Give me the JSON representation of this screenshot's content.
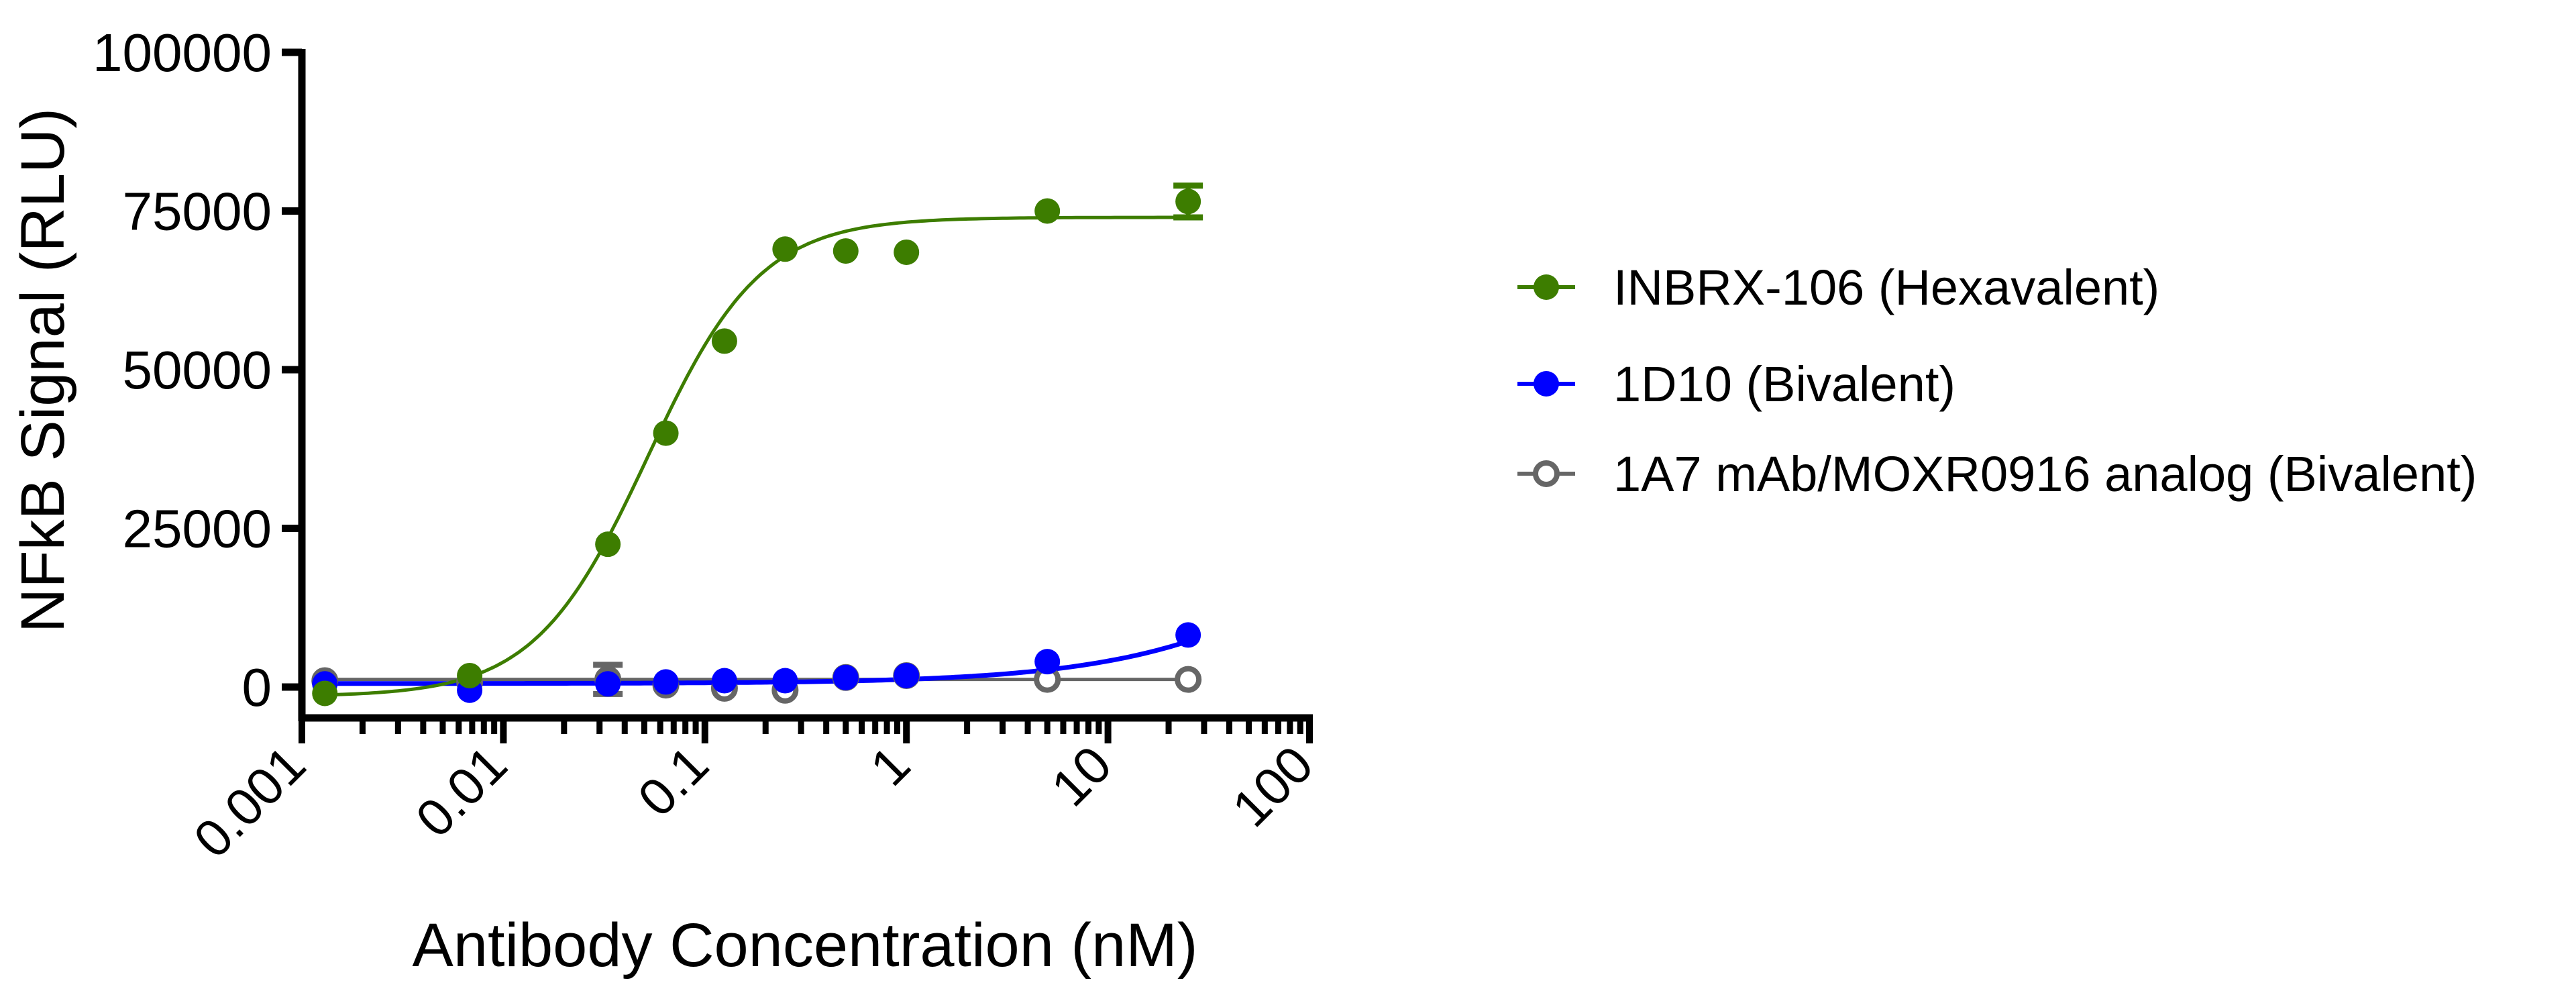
{
  "chart_data": {
    "type": "scatter",
    "title": "",
    "xlabel": "Antibody Concentration (nM)",
    "ylabel": "NFkB Signal (RLU)",
    "xscale": "log",
    "xlim": [
      0.001,
      100
    ],
    "ylim": [
      -5000,
      100000
    ],
    "xticks": [
      "0.001",
      "0.01",
      "0.1",
      "1",
      "10",
      "100"
    ],
    "xtick_values": [
      0.001,
      0.01,
      0.1,
      1,
      10,
      100
    ],
    "yticks": [
      "0",
      "25000",
      "50000",
      "75000",
      "100000"
    ],
    "ytick_values": [
      0,
      25000,
      50000,
      75000,
      100000
    ],
    "grid": false,
    "legend_position": "right",
    "series": [
      {
        "name": "INBRX-106 (Hexavalent)",
        "color": "#3d7d00",
        "marker": "filled-circle",
        "x": [
          0.0013,
          0.0068,
          0.033,
          0.064,
          0.125,
          0.25,
          0.5,
          1,
          5,
          25
        ],
        "y": [
          -1000,
          1800,
          22500,
          40000,
          54500,
          69000,
          68700,
          68500,
          75000,
          76500
        ],
        "error": [
          0,
          0,
          0,
          0,
          0,
          0,
          0,
          0,
          0,
          2500
        ],
        "fit": "sigmoidal"
      },
      {
        "name": "1D10 (Bivalent)",
        "color": "#0000ff",
        "marker": "filled-circle",
        "x": [
          0.0013,
          0.0068,
          0.033,
          0.064,
          0.125,
          0.25,
          0.5,
          1,
          5,
          25
        ],
        "y": [
          500,
          -500,
          500,
          800,
          1000,
          1000,
          1500,
          1800,
          4000,
          8200
        ],
        "error": [
          0,
          0,
          0,
          0,
          0,
          0,
          0,
          0,
          0,
          0
        ],
        "fit": "curve"
      },
      {
        "name": "1A7 mAb/MOXR0916 analog (Bivalent)",
        "color": "#666666",
        "marker": "open-circle",
        "x": [
          0.0013,
          0.0068,
          0.033,
          0.064,
          0.125,
          0.25,
          0.5,
          1,
          5,
          25
        ],
        "y": [
          1000,
          800,
          1200,
          300,
          -200,
          -500,
          1500,
          1800,
          1200,
          1200
        ],
        "error": [
          0,
          0,
          2300,
          0,
          0,
          0,
          0,
          0,
          0,
          0
        ],
        "fit": "flat"
      }
    ]
  }
}
